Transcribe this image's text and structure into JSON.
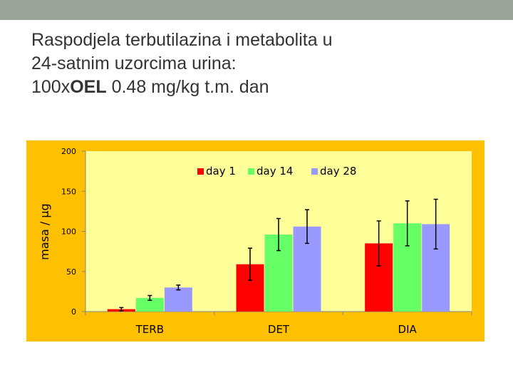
{
  "slide": {
    "title_line1": "Raspodjela terbutilazina i metabolita u",
    "title_line2": "24-satnim uzorcima urina:",
    "title_line3_pre": "100x",
    "title_line3_bold": "OEL",
    "title_line3_post": " 0.48 mg/kg t.m. dan"
  },
  "colors": {
    "top_band": "#9aa59a",
    "chart_background": "#fec000",
    "plot_background": "#ffff99"
  },
  "chart_data": {
    "type": "bar",
    "categories": [
      "TERB",
      "DET",
      "DIA"
    ],
    "series": [
      {
        "name": "day 1",
        "color": "#ff0000",
        "values": [
          3,
          59,
          85
        ],
        "error": [
          2,
          20,
          28
        ]
      },
      {
        "name": "day 14",
        "color": "#66ff66",
        "values": [
          17,
          96,
          110
        ],
        "error": [
          3,
          20,
          28
        ]
      },
      {
        "name": "day 28",
        "color": "#9999ff",
        "values": [
          30,
          106,
          109
        ],
        "error": [
          3,
          21,
          31
        ]
      }
    ],
    "ylabel": "masa / µg",
    "xlabel": "",
    "ylim": [
      0,
      200
    ],
    "yticks": [
      "0",
      "50",
      "100",
      "150",
      "200"
    ],
    "legend_position": "top-right",
    "grid": false
  }
}
